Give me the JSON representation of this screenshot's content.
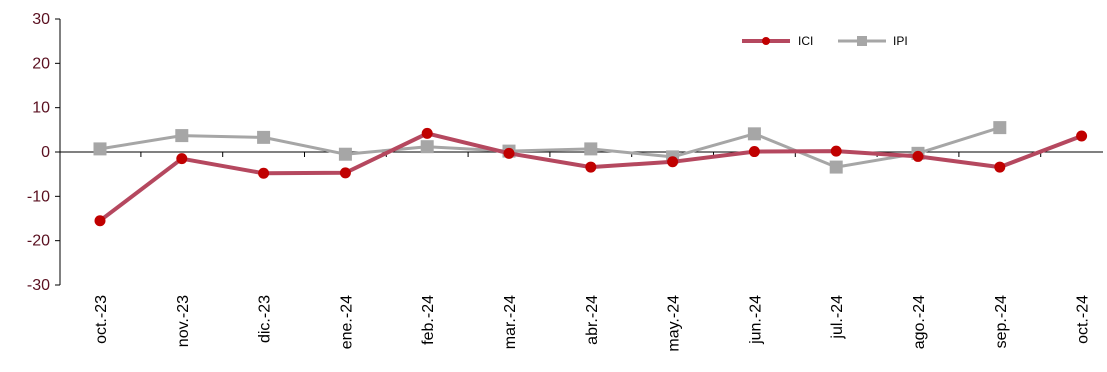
{
  "chart_data": {
    "type": "line",
    "title": "",
    "xlabel": "",
    "ylabel": "",
    "categories": [
      "oct.-23",
      "nov.-23",
      "dic.-23",
      "ene.-24",
      "feb.-24",
      "mar.-24",
      "abr.-24",
      "may.-24",
      "jun.-24",
      "jul.-24",
      "ago.-24",
      "sep.-24",
      "oct.-24"
    ],
    "ylim": [
      -30,
      30
    ],
    "yticks": [
      30,
      20,
      10,
      0,
      -10,
      -20,
      -30
    ],
    "grid": false,
    "legend_position": "top-right",
    "series": [
      {
        "name": "ICI",
        "color": "#b5485f",
        "marker": "circle",
        "marker_color": "#c00000",
        "values": [
          -15.5,
          -1.5,
          -4.8,
          -4.7,
          4.2,
          -0.3,
          -3.4,
          -2.2,
          0.1,
          0.2,
          -1.0,
          -3.4,
          3.6
        ]
      },
      {
        "name": "IPI",
        "color": "#a6a6a6",
        "marker": "square",
        "marker_color": "#a6a6a6",
        "values": [
          0.7,
          3.7,
          3.3,
          -0.5,
          1.2,
          0.2,
          0.7,
          -1.1,
          4.1,
          -3.4,
          -0.3,
          5.5,
          null
        ]
      }
    ]
  }
}
